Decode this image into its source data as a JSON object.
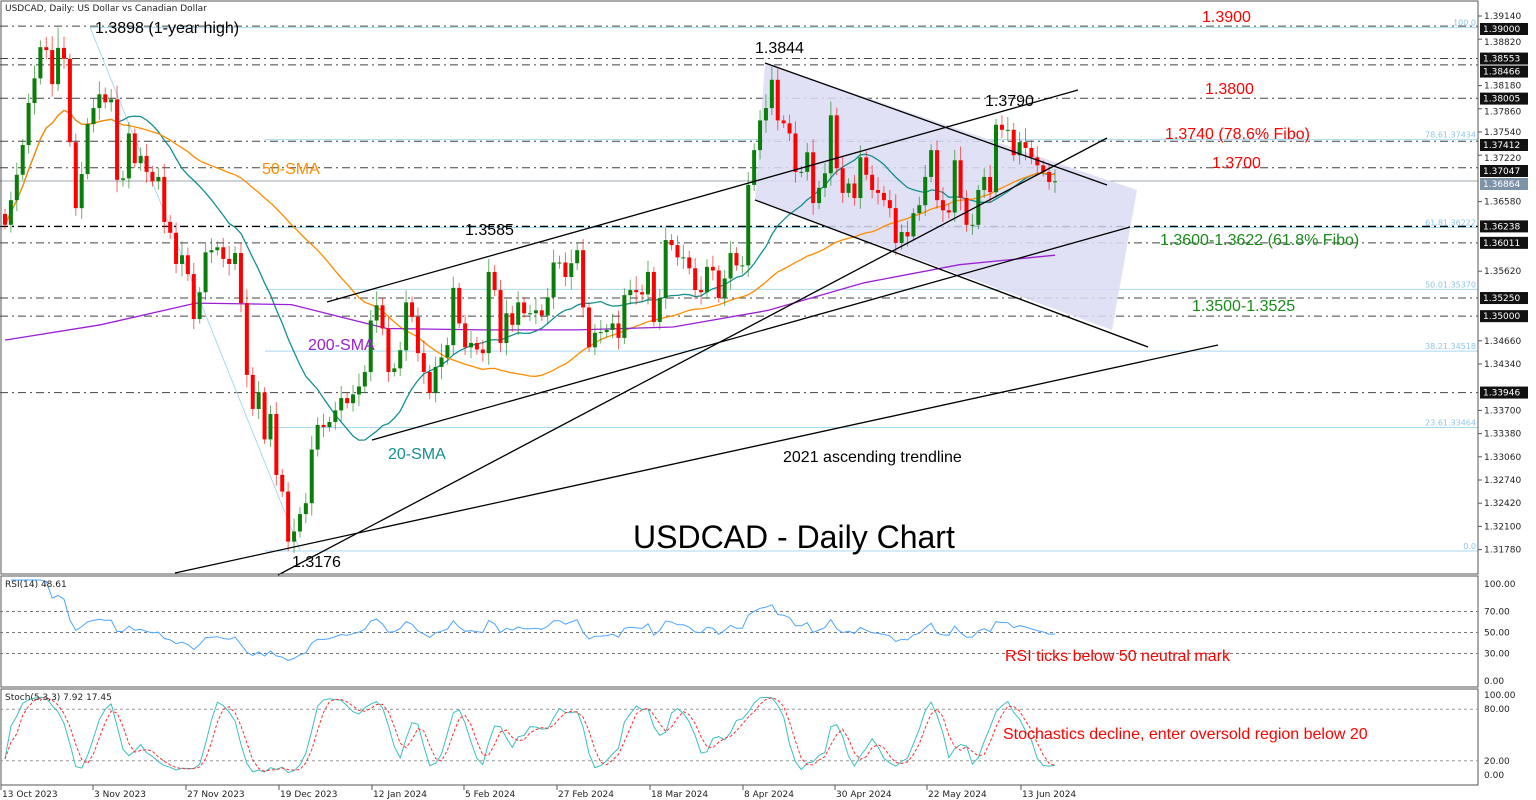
{
  "header": {
    "title": "USDCAD, Daily:  US Dollar vs Canadian Dollar"
  },
  "colors": {
    "bull": "#0a7d0a",
    "bear": "#ff0000",
    "sma20": "#138f8f",
    "sma50": "#ff8c00",
    "sma200": "#9b1fd6",
    "fib": "#a8d8f0",
    "rsi": "#4da6ff",
    "stoch_main": "#3cc0c0",
    "stoch_signal": "#ff3030",
    "red_text": "#ff0000",
    "green_text": "#1a8a1a"
  },
  "chart_data": {
    "type": "candlestick",
    "symbol": "USDCAD",
    "timeframe": "Daily",
    "ylim": [
      1.3162,
      1.3918
    ],
    "closes": [
      1.3626,
      1.366,
      1.3695,
      1.3736,
      1.3794,
      1.3828,
      1.3871,
      1.3867,
      1.382,
      1.387,
      1.3855,
      1.374,
      1.3649,
      1.3696,
      1.3765,
      1.3787,
      1.3806,
      1.3795,
      1.3799,
      1.3688,
      1.369,
      1.3752,
      1.3711,
      1.3721,
      1.3699,
      1.3686,
      1.3692,
      1.363,
      1.3615,
      1.3572,
      1.3584,
      1.3558,
      1.3496,
      1.3533,
      1.3588,
      1.3591,
      1.3595,
      1.3579,
      1.3572,
      1.3587,
      1.3518,
      1.3419,
      1.3372,
      1.3395,
      1.333,
      1.3365,
      1.3281,
      1.3258,
      1.3189,
      1.3203,
      1.3227,
      1.3242,
      1.3316,
      1.335,
      1.3347,
      1.3354,
      1.337,
      1.3387,
      1.338,
      1.3392,
      1.3403,
      1.3423,
      1.3494,
      1.3515,
      1.3483,
      1.3423,
      1.3428,
      1.3453,
      1.3519,
      1.3499,
      1.3449,
      1.3423,
      1.3394,
      1.343,
      1.3443,
      1.346,
      1.3539,
      1.349,
      1.3457,
      1.3463,
      1.3454,
      1.3449,
      1.3561,
      1.3536,
      1.3463,
      1.3504,
      1.3488,
      1.3519,
      1.3504,
      1.3504,
      1.3508,
      1.3501,
      1.3526,
      1.3574,
      1.3574,
      1.3554,
      1.3573,
      1.3591,
      1.3512,
      1.3457,
      1.3477,
      1.3478,
      1.3481,
      1.349,
      1.347,
      1.3529,
      1.3536,
      1.3533,
      1.353,
      1.3561,
      1.3492,
      1.3525,
      1.3605,
      1.3598,
      1.3581,
      1.3581,
      1.3566,
      1.3536,
      1.3533,
      1.3568,
      1.3563,
      1.3525,
      1.3552,
      1.3587,
      1.357,
      1.357,
      1.3681,
      1.3729,
      1.377,
      1.3787,
      1.3826,
      1.377,
      1.3766,
      1.3752,
      1.3699,
      1.3699,
      1.3726,
      1.3656,
      1.3677,
      1.3697,
      1.3777,
      1.3704,
      1.367,
      1.3683,
      1.3663,
      1.3719,
      1.3695,
      1.3674,
      1.367,
      1.366,
      1.3649,
      1.3601,
      1.3616,
      1.361,
      1.3642,
      1.3653,
      1.3692,
      1.3729,
      1.366,
      1.3646,
      1.3643,
      1.3715,
      1.3663,
      1.3626,
      1.3626,
      1.3674,
      1.3692,
      1.3671,
      1.3764,
      1.3757,
      1.3757,
      1.3722,
      1.374,
      1.3732,
      1.3719,
      1.3708,
      1.3699,
      1.3685,
      1.3686
    ],
    "sma200_sampled": [
      1.3467,
      1.3488,
      1.3518,
      1.3516,
      1.3483,
      1.3481,
      1.3481,
      1.3485,
      1.3508,
      1.3546,
      1.3571,
      1.3584
    ],
    "x_tick_labels": [
      "13 Oct 2023",
      "3 Nov 2023",
      "27 Nov 2023",
      "19 Dec 2023",
      "12 Jan 2024",
      "5 Feb 2024",
      "27 Feb 2024",
      "18 Mar 2024",
      "8 Apr 2024",
      "30 Apr 2024",
      "22 May 2024",
      "13 Jun 2024"
    ],
    "y_tick_labels": [
      "1.39140",
      "1.38820",
      "1.38180",
      "1.37860",
      "1.37540",
      "1.37220",
      "1.36580",
      "1.35620",
      "1.34660",
      "1.34340",
      "1.33700",
      "1.33380",
      "1.33060",
      "1.32740",
      "1.32420",
      "1.32100",
      "1.31780"
    ],
    "level_boxes": [
      "1.39000",
      "1.38553",
      "1.38466",
      "1.38005",
      "1.37412",
      "1.37047",
      "1.36238",
      "1.36011",
      "1.35250",
      "1.35000",
      "1.33946"
    ],
    "current_price": "1.36864",
    "fib_levels": [
      {
        "price": 1.3898,
        "label": "100.0"
      },
      {
        "price": 1.37434,
        "label": "78.61.37434"
      },
      {
        "price": 1.36222,
        "label": "61.81.36222"
      },
      {
        "price": 1.3537,
        "label": "50.01.35370"
      },
      {
        "price": 1.34518,
        "label": "38.21.34518"
      },
      {
        "price": 1.33464,
        "label": "23.61.33464"
      },
      {
        "price": 1.3176,
        "label": "0.0"
      }
    ],
    "annotations": {
      "year_high": "1.3898 (1-year high)",
      "high_apr": "1.3844",
      "high_jun": "1.3790",
      "level_jan": "1.3585",
      "low_dec": "1.3176",
      "sma50": "50-SMA",
      "sma200": "200-SMA",
      "sma20": "20-SMA",
      "trendline": "2021 ascending trendline",
      "big_title": "USDCAD - Daily Chart",
      "r1": "1.3900",
      "r2": "1.3800",
      "r3": "1.3740 (78.6% Fibo)",
      "r4": "1.3700",
      "s1": "1.3600-1.3622 (61.8% Fibo)",
      "s2": "1.3500-1.3525"
    },
    "rsi": {
      "label": "RSI(14) 48.61",
      "levels": [
        70,
        50,
        30
      ],
      "ticks": [
        "100.00",
        "70.00",
        "50.00",
        "30.00",
        "0.00"
      ],
      "note": "RSI ticks below 50 neutral mark"
    },
    "stoch": {
      "label": "Stoch(5,3,3) 7.92 17.45",
      "levels": [
        80,
        20
      ],
      "ticks": [
        "100.00",
        "80.00",
        "20.00",
        "0.00"
      ],
      "note": "Stochastics decline, enter oversold region below 20"
    }
  }
}
